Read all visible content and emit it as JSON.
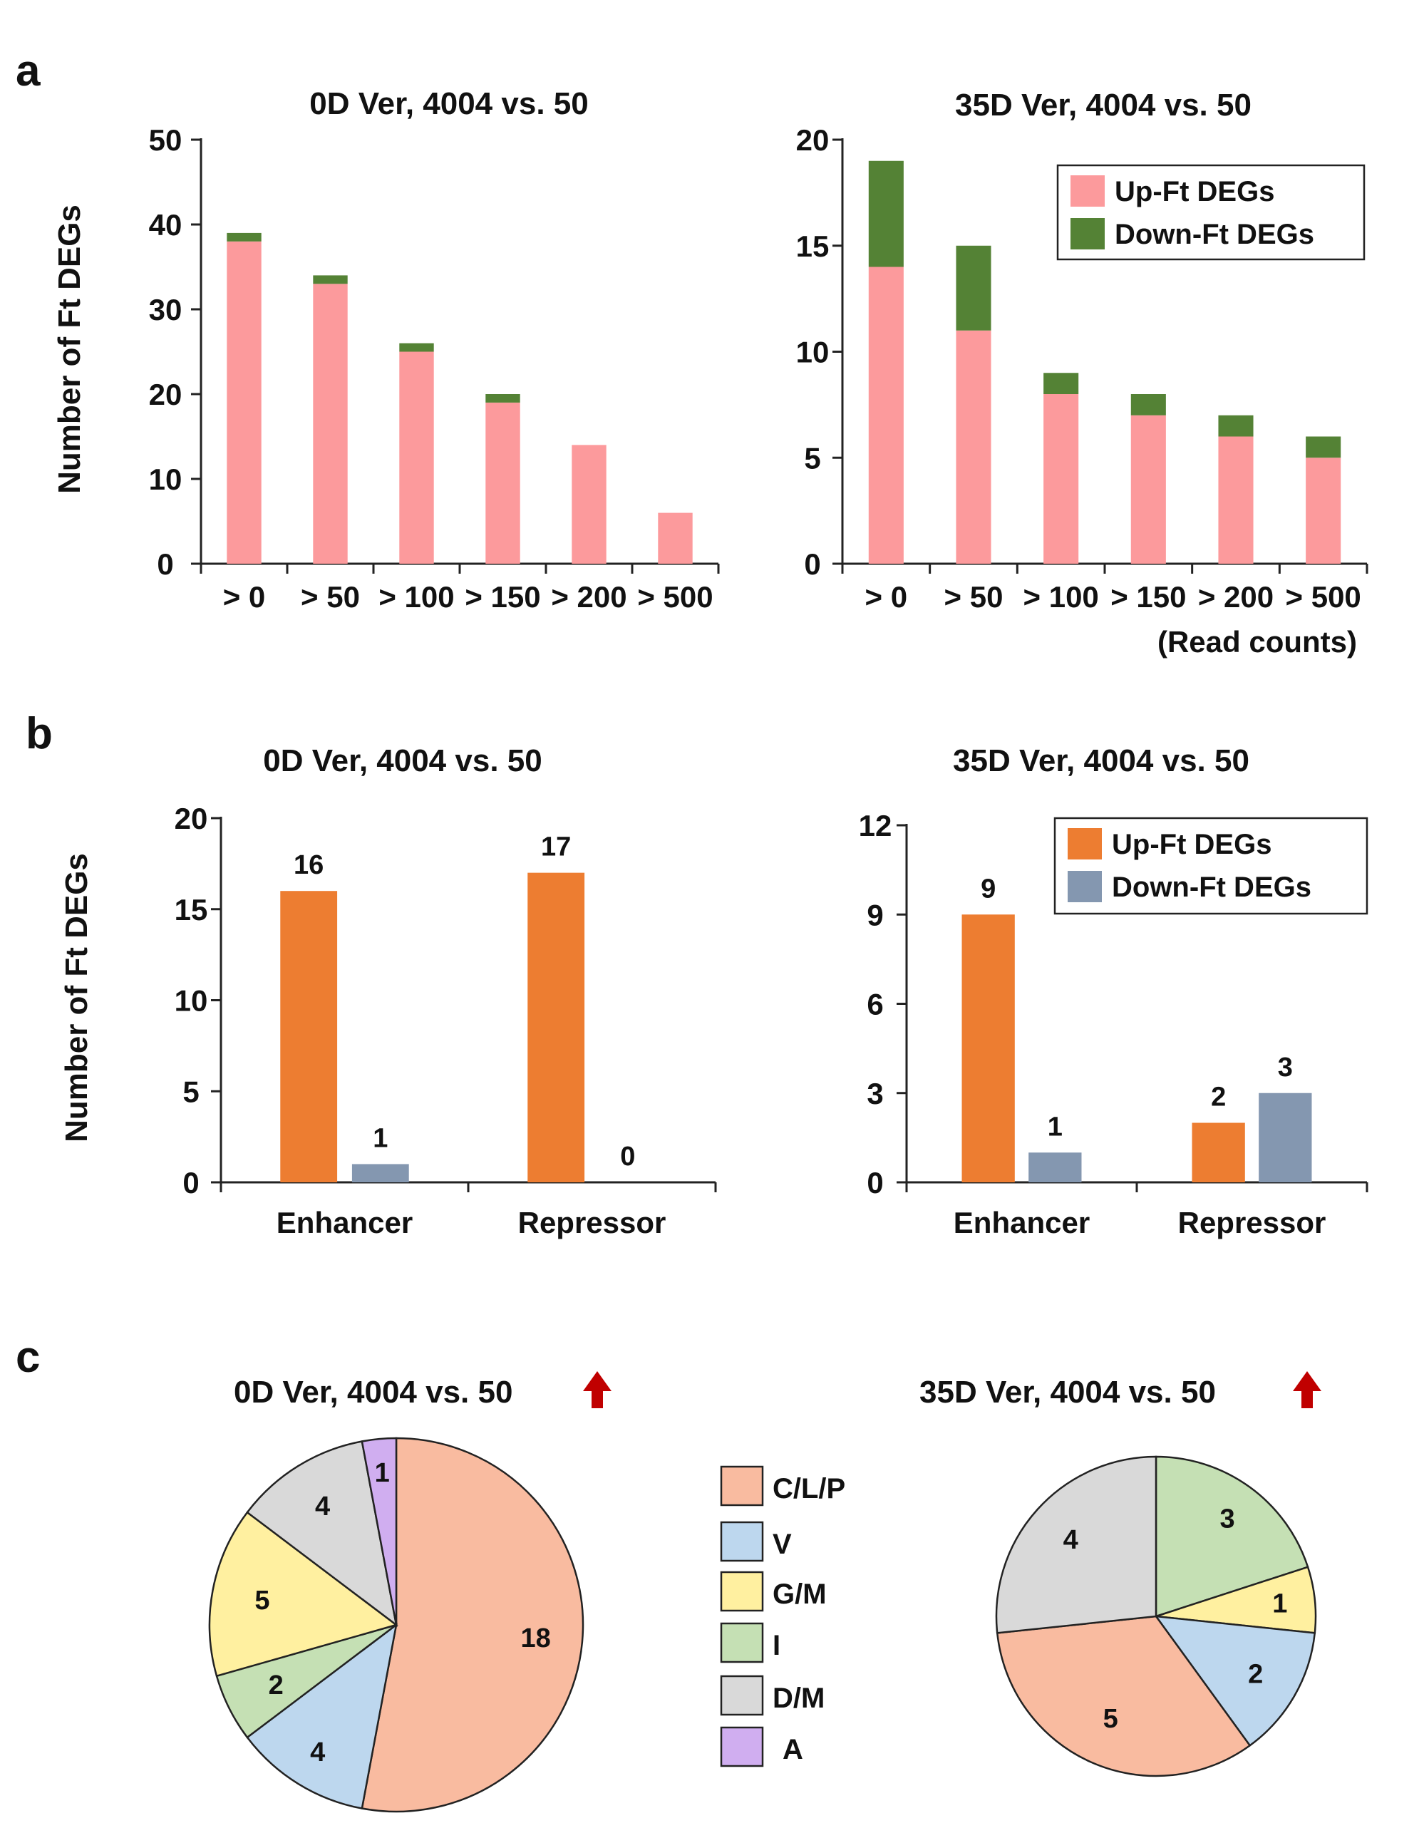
{
  "panel_labels": {
    "a": "a",
    "b": "b",
    "c": "c"
  },
  "colors": {
    "up_ft_a": "#fc9a9c",
    "down_ft_a": "#548235",
    "up_ft_b": "#ed7d31",
    "down_ft_b": "#8497b0",
    "arrow": "#c00000",
    "pie": {
      "C/L/P": "#f9bba0",
      "V": "#bdd7ee",
      "G/M": "#fff0a0",
      "I": "#c5e0b4",
      "D/M": "#d9d9d9",
      "A": "#d0aef0"
    }
  },
  "chart_data": [
    {
      "id": "a-left",
      "type": "bar",
      "stacked": true,
      "title": "0D Ver, 4004 vs. 50",
      "ylabel": "Number of Ft DEGs",
      "xlabel": "",
      "ylim": [
        0,
        50
      ],
      "yticks": [
        "0",
        "10",
        "20",
        "30",
        "40",
        "50"
      ],
      "categories": [
        "> 0",
        "> 50",
        "> 100",
        "> 150",
        "> 200",
        "> 500"
      ],
      "series": [
        {
          "name": "Up-Ft DEGs",
          "values": [
            38,
            33,
            25,
            19,
            14,
            6
          ]
        },
        {
          "name": "Down-Ft DEGs",
          "values": [
            1,
            1,
            1,
            1,
            0,
            0
          ]
        }
      ]
    },
    {
      "id": "a-right",
      "type": "bar",
      "stacked": true,
      "title": "35D Ver, 4004 vs. 50",
      "ylabel": "",
      "xlabel": "(Read counts)",
      "ylim": [
        0,
        20
      ],
      "yticks": [
        "0",
        "5",
        "10",
        "15",
        "20"
      ],
      "categories": [
        "> 0",
        "> 50",
        "> 100",
        "> 150",
        "> 200",
        "> 500"
      ],
      "legend": [
        "Up-Ft DEGs",
        "Down-Ft DEGs"
      ],
      "legend_position": "top-right",
      "series": [
        {
          "name": "Up-Ft DEGs",
          "values": [
            14,
            11,
            8,
            7,
            6,
            5
          ]
        },
        {
          "name": "Down-Ft DEGs",
          "values": [
            5,
            4,
            1,
            1,
            1,
            1
          ]
        }
      ]
    },
    {
      "id": "b-left",
      "type": "bar",
      "stacked": false,
      "title": "0D Ver, 4004 vs. 50",
      "ylabel": "Number of Ft DEGs",
      "xlabel": "",
      "ylim": [
        0,
        20
      ],
      "yticks": [
        "0",
        "5",
        "10",
        "15",
        "20"
      ],
      "categories": [
        "Enhancer",
        "Repressor"
      ],
      "series": [
        {
          "name": "Up-Ft DEGs",
          "values": [
            16,
            17
          ],
          "labels": [
            "16",
            "17"
          ]
        },
        {
          "name": "Down-Ft DEGs",
          "values": [
            1,
            0
          ],
          "labels": [
            "1",
            "0"
          ]
        }
      ]
    },
    {
      "id": "b-right",
      "type": "bar",
      "stacked": false,
      "title": "35D Ver, 4004 vs. 50",
      "ylabel": "",
      "xlabel": "",
      "ylim": [
        0,
        12
      ],
      "yticks": [
        "0",
        "3",
        "6",
        "9",
        "12"
      ],
      "categories": [
        "Enhancer",
        "Repressor"
      ],
      "legend": [
        "Up-Ft DEGs",
        "Down-Ft DEGs"
      ],
      "legend_position": "top-right",
      "series": [
        {
          "name": "Up-Ft DEGs",
          "values": [
            9,
            2
          ],
          "labels": [
            "9",
            "2"
          ]
        },
        {
          "name": "Down-Ft DEGs",
          "values": [
            1,
            3
          ],
          "labels": [
            "1",
            "3"
          ]
        }
      ]
    },
    {
      "id": "c-left",
      "type": "pie",
      "title": "0D Ver, 4004 vs. 50",
      "title_arrow": "up",
      "slices": [
        {
          "label": "C/L/P",
          "value": 18
        },
        {
          "label": "V",
          "value": 4
        },
        {
          "label": "I",
          "value": 2
        },
        {
          "label": "G/M",
          "value": 5
        },
        {
          "label": "D/M",
          "value": 4
        },
        {
          "label": "A",
          "value": 1
        }
      ]
    },
    {
      "id": "c-right",
      "type": "pie",
      "title": "35D Ver, 4004 vs. 50",
      "title_arrow": "up",
      "slices": [
        {
          "label": "I",
          "value": 3
        },
        {
          "label": "G/M",
          "value": 1
        },
        {
          "label": "V",
          "value": 2
        },
        {
          "label": "C/L/P",
          "value": 5
        },
        {
          "label": "D/M",
          "value": 4
        }
      ]
    }
  ],
  "pie_legend": [
    "C/L/P",
    "V",
    "G/M",
    "I",
    "D/M",
    "A"
  ]
}
